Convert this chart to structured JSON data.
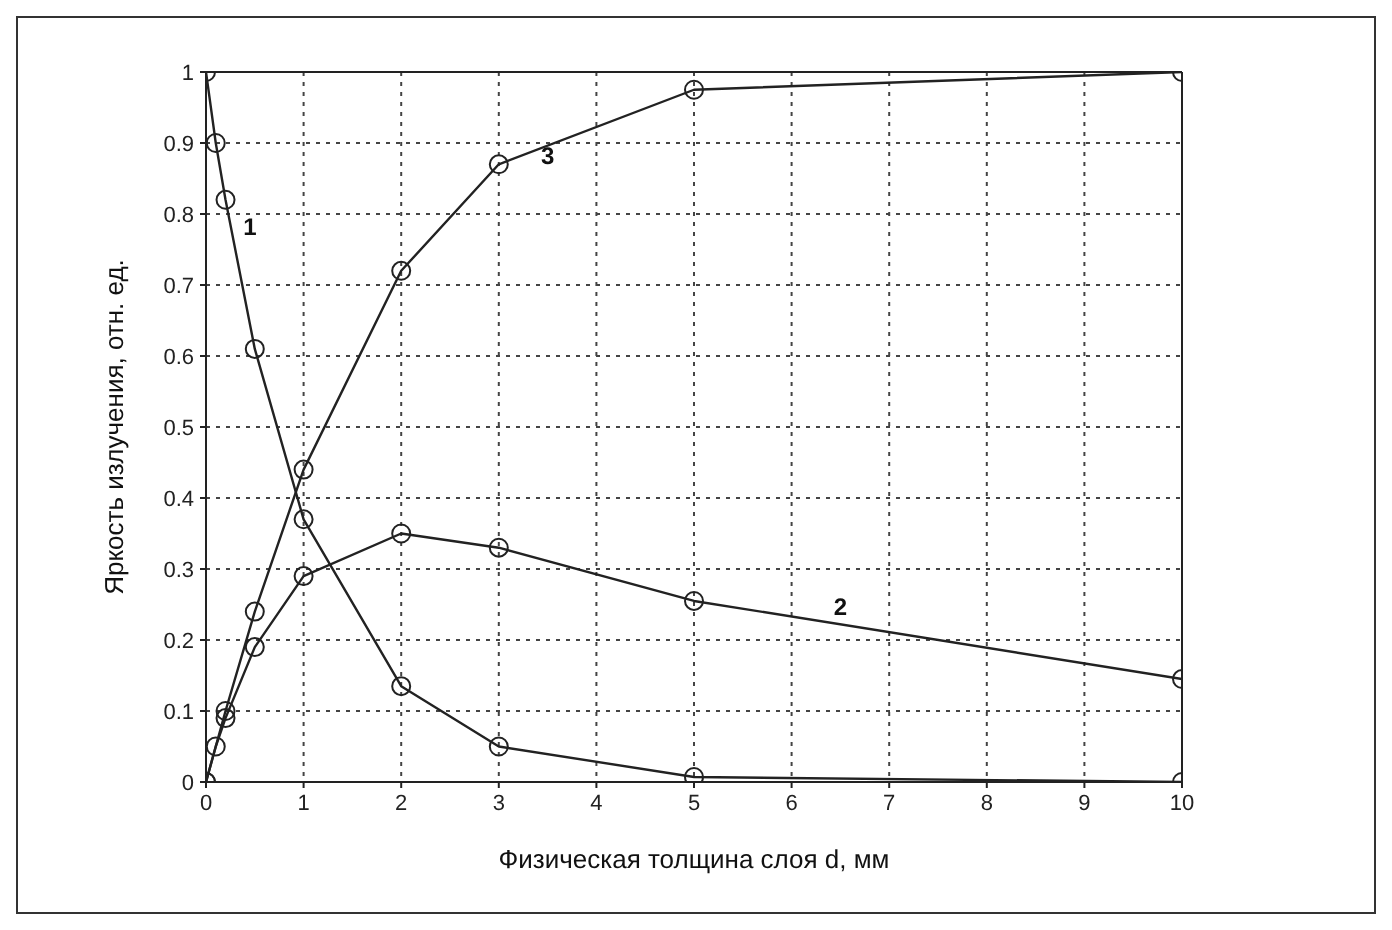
{
  "chart_data": {
    "type": "line",
    "xlabel": "Физическая толщина слоя d, мм",
    "ylabel": "Яркость излучения, отн. ед.",
    "xlim": [
      0,
      10
    ],
    "ylim": [
      0,
      1
    ],
    "xticks": [
      0,
      1,
      2,
      3,
      4,
      5,
      6,
      7,
      8,
      9,
      10
    ],
    "yticks": [
      0,
      0.1,
      0.2,
      0.3,
      0.4,
      0.5,
      0.6,
      0.7,
      0.8,
      0.9,
      1
    ],
    "series": [
      {
        "color": "#222222",
        "x": [
          0,
          0.1,
          0.2,
          0.5,
          1,
          2,
          3,
          5,
          10
        ],
        "values": [
          1,
          0.9,
          0.82,
          0.61,
          0.37,
          0.135,
          0.05,
          0.007,
          0
        ]
      },
      {
        "color": "#222222",
        "x": [
          0,
          0.1,
          0.2,
          0.5,
          1,
          2,
          3,
          5,
          10
        ],
        "values": [
          0,
          0.05,
          0.09,
          0.19,
          0.29,
          0.35,
          0.33,
          0.255,
          0.145
        ]
      },
      {
        "color": "#222222",
        "x": [
          0,
          0.2,
          0.5,
          1,
          2,
          3,
          5,
          10
        ],
        "values": [
          0,
          0.1,
          0.24,
          0.44,
          0.72,
          0.87,
          0.975,
          1
        ]
      }
    ],
    "annotations": [
      "1",
      "2",
      "3"
    ],
    "grid": true,
    "marker": "circle",
    "line_style": "solid"
  }
}
